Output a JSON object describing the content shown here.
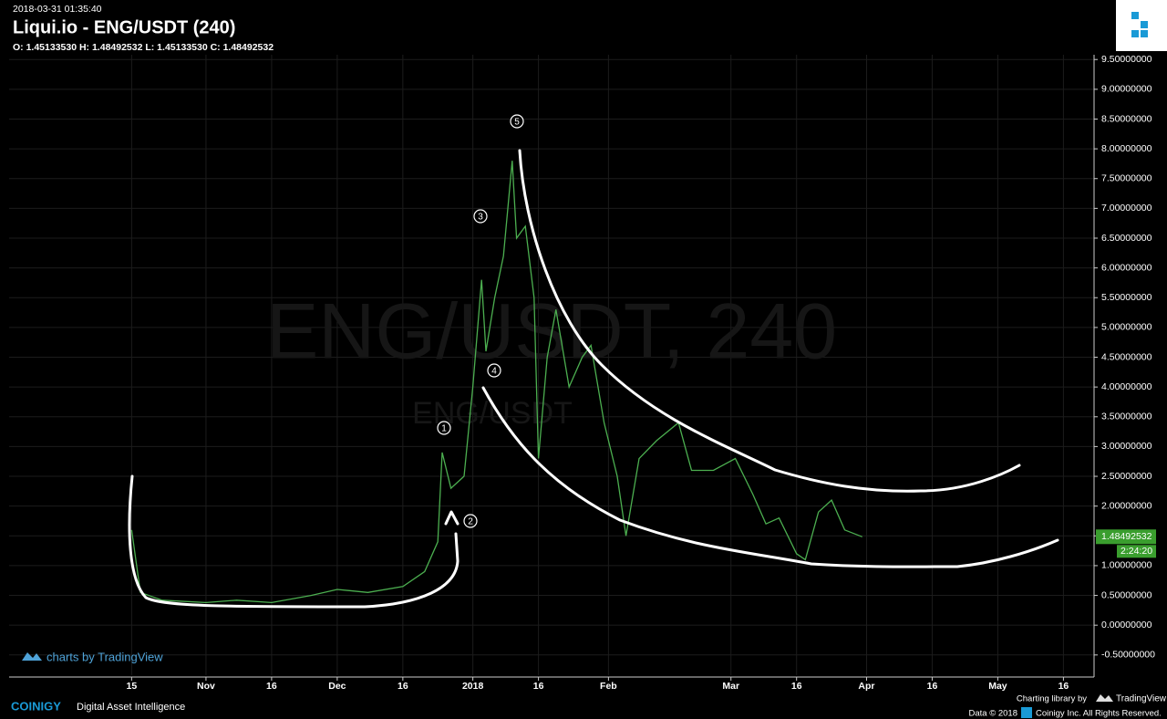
{
  "chart_data": {
    "type": "line",
    "timestamp": "2018-03-31 01:35:40",
    "title": "Liqui.io - ENG/USDT (240)",
    "ohlc": "O: 1.45133530 H: 1.48492532 L: 1.45133530 C: 1.48492532",
    "watermark": "ENG/USDT, 240",
    "watermark_small": "ENG/USDT",
    "price_tag": "1.48492532",
    "countdown": "2:24:20",
    "annotations": [
      "1",
      "2",
      "3",
      "4",
      "5"
    ],
    "x": [
      "2017-10-15",
      "2017-10-17",
      "2017-10-22",
      "2017-11-01",
      "2017-11-08",
      "2017-11-16",
      "2017-11-25",
      "2017-12-01",
      "2017-12-08",
      "2017-12-16",
      "2017-12-21",
      "2017-12-24",
      "2017-12-25",
      "2017-12-27",
      "2017-12-30",
      "2018-01-01",
      "2018-01-03",
      "2018-01-04",
      "2018-01-06",
      "2018-01-08",
      "2018-01-10",
      "2018-01-11",
      "2018-01-13",
      "2018-01-15",
      "2018-01-16",
      "2018-01-18",
      "2018-01-20",
      "2018-01-23",
      "2018-01-26",
      "2018-01-28",
      "2018-01-31",
      "2018-02-03",
      "2018-02-05",
      "2018-02-08",
      "2018-02-12",
      "2018-02-17",
      "2018-02-20",
      "2018-02-25",
      "2018-03-02",
      "2018-03-06",
      "2018-03-09",
      "2018-03-12",
      "2018-03-16",
      "2018-03-18",
      "2018-03-21",
      "2018-03-24",
      "2018-03-27",
      "2018-03-31"
    ],
    "series": [
      {
        "name": "ENG/USDT",
        "color": "#4caf50",
        "values": [
          1.6,
          0.55,
          0.42,
          0.38,
          0.42,
          0.38,
          0.5,
          0.6,
          0.55,
          0.65,
          0.9,
          1.4,
          2.9,
          2.3,
          2.5,
          4.0,
          5.8,
          4.6,
          5.5,
          6.2,
          7.8,
          6.5,
          6.7,
          5.5,
          2.8,
          4.5,
          5.3,
          4.0,
          4.5,
          4.7,
          3.4,
          2.5,
          1.5,
          2.8,
          3.1,
          3.4,
          2.6,
          2.6,
          2.8,
          2.2,
          1.7,
          1.8,
          1.2,
          1.1,
          1.9,
          2.1,
          1.6,
          1.48492532
        ]
      }
    ],
    "xlim": [
      "2017-09-17",
      "2018-05-23"
    ],
    "xticks": [
      {
        "value": "2017-10-15",
        "label": "15"
      },
      {
        "value": "2017-11-01",
        "label": "Nov"
      },
      {
        "value": "2017-11-16",
        "label": "16"
      },
      {
        "value": "2017-12-01",
        "label": "Dec"
      },
      {
        "value": "2017-12-16",
        "label": "16"
      },
      {
        "value": "2018-01-01",
        "label": "2018"
      },
      {
        "value": "2018-01-16",
        "label": "16"
      },
      {
        "value": "2018-02-01",
        "label": "Feb"
      },
      {
        "value": "2018-03-01",
        "label": "Mar"
      },
      {
        "value": "2018-03-16",
        "label": "16"
      },
      {
        "value": "2018-04-01",
        "label": "Apr"
      },
      {
        "value": "2018-04-16",
        "label": "16"
      },
      {
        "value": "2018-05-01",
        "label": "May"
      },
      {
        "value": "2018-05-16",
        "label": "16"
      }
    ],
    "ylim": [
      -0.84,
      9.58
    ],
    "yticks": [
      {
        "value": -0.5,
        "label": "-0.50000000"
      },
      {
        "value": 0,
        "label": "0.00000000"
      },
      {
        "value": 0.5,
        "label": "0.50000000"
      },
      {
        "value": 1,
        "label": "1.00000000"
      },
      {
        "value": 1.5,
        "label": "1.50000000"
      },
      {
        "value": 2,
        "label": "2.00000000"
      },
      {
        "value": 2.5,
        "label": "2.50000000"
      },
      {
        "value": 3,
        "label": "3.00000000"
      },
      {
        "value": 3.5,
        "label": "3.50000000"
      },
      {
        "value": 4,
        "label": "4.00000000"
      },
      {
        "value": 4.5,
        "label": "4.50000000"
      },
      {
        "value": 5,
        "label": "5.00000000"
      },
      {
        "value": 5.5,
        "label": "5.50000000"
      },
      {
        "value": 6,
        "label": "6.00000000"
      },
      {
        "value": 6.5,
        "label": "6.50000000"
      },
      {
        "value": 7,
        "label": "7.00000000"
      },
      {
        "value": 7.5,
        "label": "7.50000000"
      },
      {
        "value": 8,
        "label": "8.00000000"
      },
      {
        "value": 8.5,
        "label": "8.50000000"
      },
      {
        "value": 9,
        "label": "9.00000000"
      },
      {
        "value": 9.5,
        "label": "9.50000000"
      }
    ],
    "grid": true,
    "credit": "charts by TradingView"
  },
  "footer": {
    "brand": "COINIGY",
    "tagline": "Digital Asset Intelligence",
    "library": "Charting library by",
    "library_name": "TradingView",
    "data_note": "Data © 2018",
    "rights": "Coinigy Inc. All Rights Reserved."
  }
}
